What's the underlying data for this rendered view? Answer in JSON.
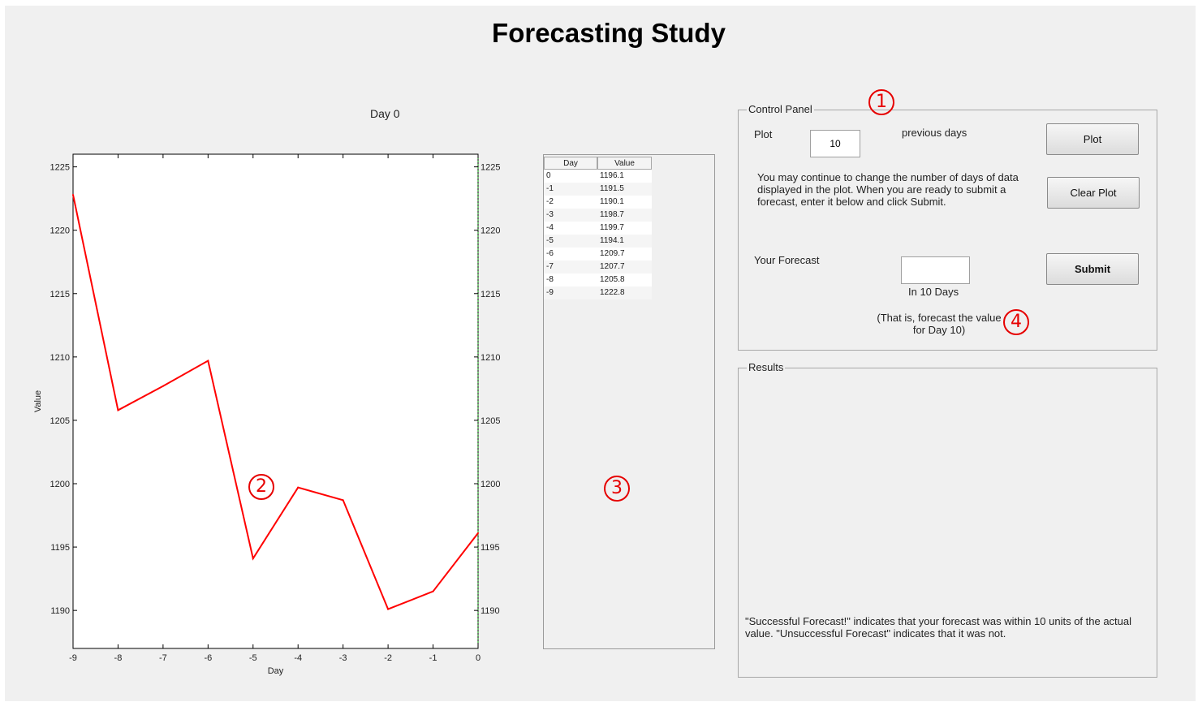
{
  "window": {
    "title": "Forecasting Study"
  },
  "markers": {
    "m1": "1",
    "m2": "2",
    "m3": "3",
    "m4": "4",
    "color": "#e60000"
  },
  "plot": {
    "title": "Day 0"
  },
  "chart_data": {
    "type": "line",
    "title": "Day 0",
    "xlabel": "Day",
    "ylabel": "Value",
    "x": [
      -9,
      -8,
      -7,
      -6,
      -5,
      -4,
      -3,
      -2,
      -1,
      0
    ],
    "y": [
      1222.8,
      1205.8,
      1207.7,
      1209.7,
      1194.1,
      1199.7,
      1198.7,
      1190.1,
      1191.5,
      1196.1
    ],
    "xlim": [
      -9,
      0
    ],
    "ylim": [
      1187,
      1226
    ],
    "xticks": [
      -9,
      -8,
      -7,
      -6,
      -5,
      -4,
      -3,
      -2,
      -1,
      0
    ],
    "yticks": [
      1190,
      1195,
      1200,
      1205,
      1210,
      1215,
      1220,
      1225
    ],
    "line_color": "#ff0000",
    "right_axis_color": "#00a000",
    "grid": false
  },
  "table": {
    "columns": [
      "Day",
      "Value"
    ],
    "rows": [
      [
        "0",
        "1196.1"
      ],
      [
        "-1",
        "1191.5"
      ],
      [
        "-2",
        "1190.1"
      ],
      [
        "-3",
        "1198.7"
      ],
      [
        "-4",
        "1199.7"
      ],
      [
        "-5",
        "1194.1"
      ],
      [
        "-6",
        "1209.7"
      ],
      [
        "-7",
        "1207.7"
      ],
      [
        "-8",
        "1205.8"
      ],
      [
        "-9",
        "1222.8"
      ]
    ]
  },
  "control_panel": {
    "legend": "Control Panel",
    "plot_label": "Plot",
    "days_value": "10",
    "days_suffix": "previous days",
    "plot_button": "Plot",
    "clear_plot_button": "Clear Plot",
    "instructions": "You may continue to change the number of days of data displayed in the plot. When you are ready to submit a forecast, enter it below and click Submit.",
    "forecast_label": "Your Forecast",
    "forecast_value": "",
    "forecast_horizon": "In 10 Days",
    "submit_button": "Submit",
    "hint_line1": "(That is, forecast the value",
    "hint_line2": "for Day 10)"
  },
  "results": {
    "legend": "Results",
    "note": "\"Successful Forecast!\" indicates that your forecast was within 10 units of the actual value. \"Unsuccessful Forecast\" indicates that it was not."
  }
}
